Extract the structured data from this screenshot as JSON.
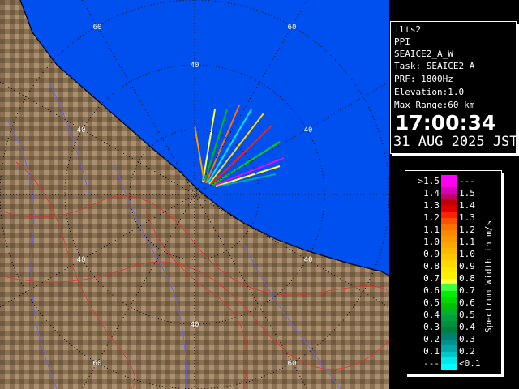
{
  "info": {
    "site": "ilts2",
    "scan_type": "PPI",
    "scan_name": "SEAICE2_A_W",
    "task": "Task: SEAICE2_A",
    "prf": "PRF: 1800Hz",
    "elevation": "Elevation:1.0",
    "max_range": "Max Range:60 km",
    "time": "17:00:34",
    "date": "31 AUG 2025 JST"
  },
  "map": {
    "ring_labels": [
      "60",
      "60",
      "40",
      "40",
      "40",
      "40",
      "40",
      "40",
      "60",
      "60"
    ],
    "sea_color": "#0050f0",
    "land_color": "#8a7050"
  },
  "legend": {
    "unit": "Spectrum Width in m/s",
    "left_labels": [
      ">1.5",
      "1.4",
      "1.3",
      "1.2",
      "1.1",
      "1.0",
      "0.9",
      "0.8",
      "0.7",
      "0.6",
      "0.5",
      "0.4",
      "0.3",
      "0.2",
      "0.1",
      "---"
    ],
    "right_labels": [
      "---",
      "1.5",
      "1.4",
      "1.3",
      "1.2",
      "1.1",
      "1.0",
      "0.9",
      "0.8",
      "0.7",
      "0.6",
      "0.5",
      "0.4",
      "0.3",
      "0.2",
      "<0.1"
    ],
    "colors": [
      "#ff00ff",
      "#ff00e8",
      "#d800b8",
      "#c00070",
      "#c00000",
      "#e00000",
      "#ff2000",
      "#ff5000",
      "#ff7000",
      "#ff8800",
      "#ff9800",
      "#ffa800",
      "#ffb800",
      "#ffc800",
      "#ffd800",
      "#ffe800",
      "#fff000",
      "#ffff40",
      "#40ff40",
      "#00f000",
      "#00d800",
      "#00c000",
      "#00b030",
      "#00a040",
      "#009040",
      "#008040",
      "#008070",
      "#009090",
      "#00a8a8",
      "#00c8c8",
      "#00e8e8",
      "#00ffff"
    ]
  }
}
